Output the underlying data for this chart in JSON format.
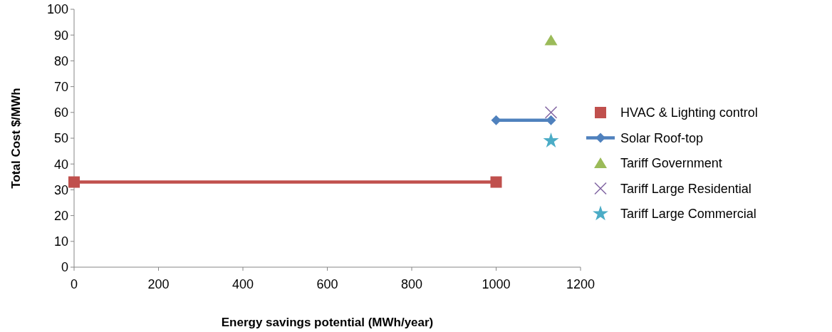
{
  "chart_data": {
    "type": "scatter",
    "xlabel": "Energy savings potential (MWh/year)",
    "ylabel": "Total Cost $/MWh",
    "xlim": [
      0,
      1200
    ],
    "xticks": [
      0,
      200,
      400,
      600,
      800,
      1000,
      1200
    ],
    "ylim": [
      0,
      100
    ],
    "yticks": [
      0,
      10,
      20,
      30,
      40,
      50,
      60,
      70,
      80,
      90,
      100
    ],
    "grid": false,
    "legend": "right",
    "series": [
      {
        "name": "HVAC & Lighting control",
        "type": "line",
        "color": "#c0504d",
        "marker": "square",
        "x": [
          0,
          1000
        ],
        "values": [
          33,
          33
        ]
      },
      {
        "name": "Solar Roof-top",
        "type": "line",
        "color": "#4f81bd",
        "marker": "diamond",
        "x": [
          1000,
          1130
        ],
        "values": [
          57,
          57
        ]
      },
      {
        "name": "Tariff Government",
        "color": "#9bbb59",
        "marker": "triangle",
        "x": [
          1130
        ],
        "values": [
          88
        ]
      },
      {
        "name": "Tariff Large Residential",
        "color": "#8064a2",
        "marker": "cross",
        "x": [
          1130
        ],
        "values": [
          60
        ]
      },
      {
        "name": "Tariff Large Commercial",
        "color": "#4bacc6",
        "marker": "star",
        "x": [
          1130
        ],
        "values": [
          49
        ]
      }
    ]
  }
}
